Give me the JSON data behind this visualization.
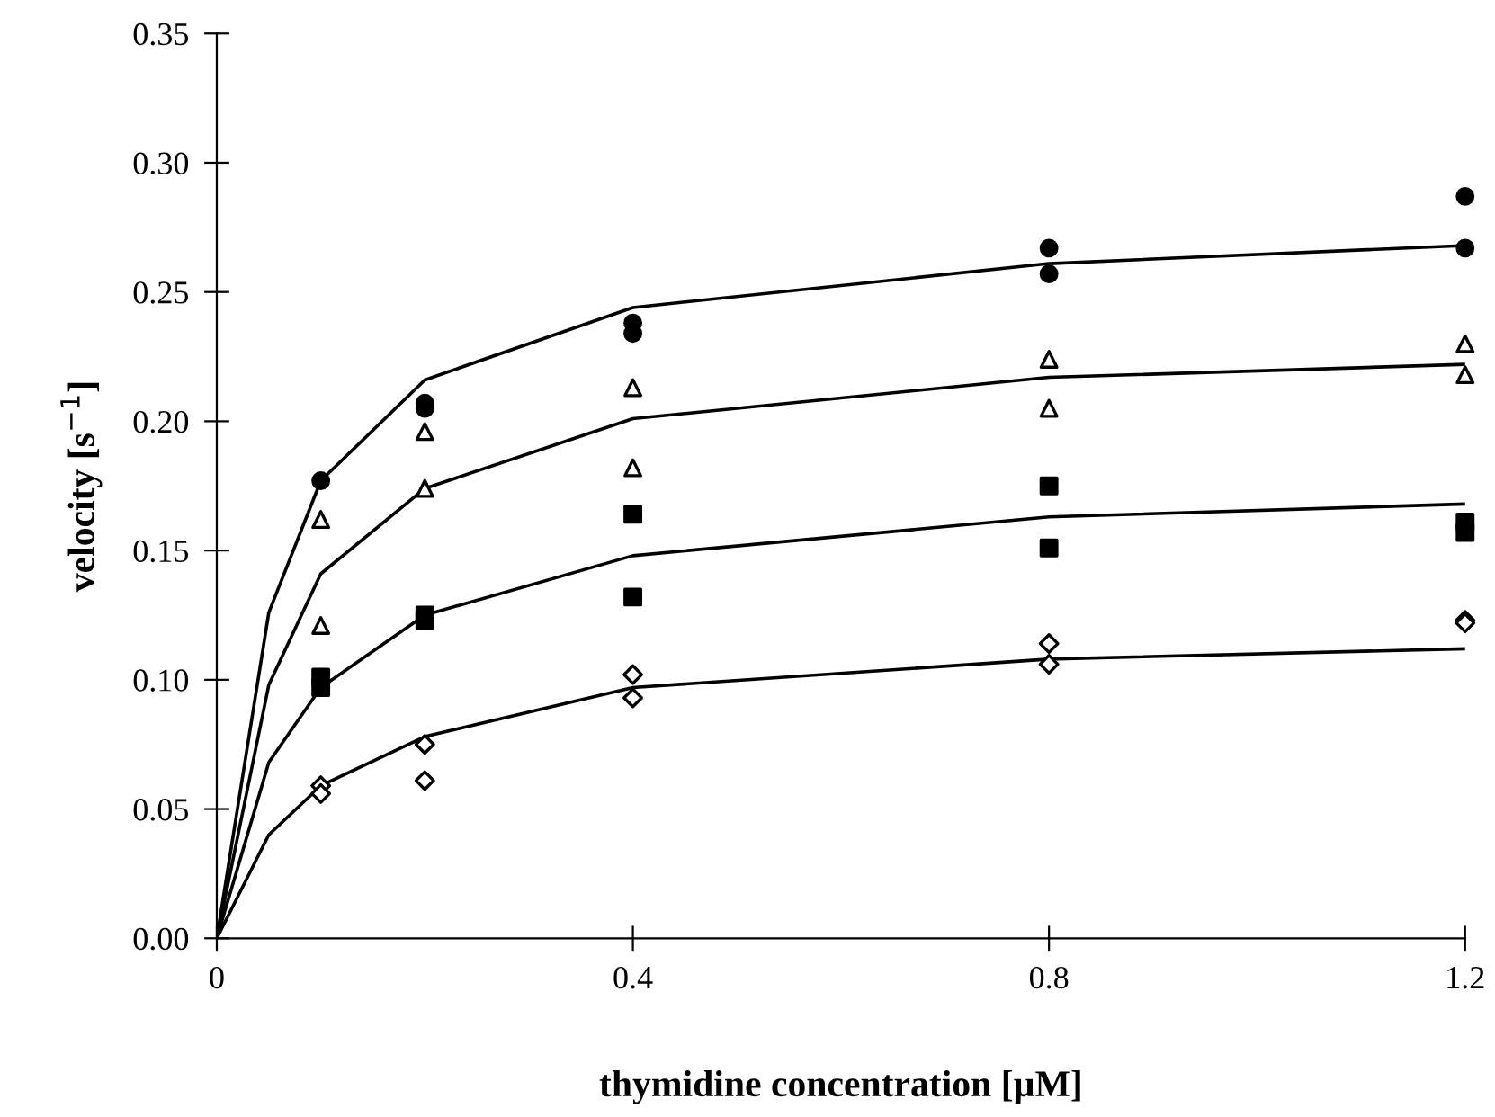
{
  "chart_data": {
    "type": "scatter",
    "xlabel": "thymidine concentration [µM]",
    "ylabel": "velocity [s$^{−1}$]",
    "xlim": [
      0,
      1.2
    ],
    "xticks": [
      0,
      0.4,
      0.8,
      1.2
    ],
    "ylim": [
      0,
      0.35
    ],
    "yticks": [
      {
        "value": 0,
        "label": "0.00"
      },
      {
        "value": 0.05,
        "label": "0.05"
      },
      {
        "value": 0.1,
        "label": "0.10"
      },
      {
        "value": 0.15,
        "label": "0.15"
      },
      {
        "value": 0.2,
        "label": "0.20"
      },
      {
        "value": 0.25,
        "label": "0.25"
      },
      {
        "value": 0.3,
        "label": "0.30"
      },
      {
        "value": 0.35,
        "label": "0.35"
      }
    ],
    "grid": false,
    "legend": false,
    "series": [
      {
        "marker": "circle",
        "color": "#000000",
        "x": [
          0.1,
          0.2,
          0.2,
          0.4,
          0.4,
          0.8,
          0.8,
          1.2,
          1.2
        ],
        "values": [
          0.177,
          0.207,
          0.205,
          0.238,
          0.234,
          0.267,
          0.257,
          0.287,
          0.267
        ]
      },
      {
        "marker": "triangle",
        "color": "#000000",
        "x": [
          0.1,
          0.1,
          0.2,
          0.2,
          0.4,
          0.4,
          0.8,
          0.8,
          1.2,
          1.2
        ],
        "values": [
          0.162,
          0.121,
          0.196,
          0.174,
          0.213,
          0.182,
          0.224,
          0.205,
          0.23,
          0.218
        ]
      },
      {
        "marker": "square",
        "color": "#000000",
        "x": [
          0.1,
          0.1,
          0.2,
          0.2,
          0.4,
          0.4,
          0.8,
          0.8,
          1.2,
          1.2
        ],
        "values": [
          0.101,
          0.097,
          0.125,
          0.123,
          0.164,
          0.132,
          0.175,
          0.151,
          0.161,
          0.157
        ]
      },
      {
        "marker": "diamond",
        "color": "#000000",
        "x": [
          0.1,
          0.1,
          0.2,
          0.2,
          0.4,
          0.4,
          0.8,
          0.8,
          1.2,
          1.2
        ],
        "values": [
          0.059,
          0.056,
          0.075,
          0.061,
          0.102,
          0.093,
          0.114,
          0.106,
          0.123,
          0.122
        ]
      },
      {
        "type": "line",
        "marker": "none",
        "color": "#000000",
        "x": [
          0,
          0.05,
          0.1,
          0.2,
          0.4,
          0.8,
          1.2
        ],
        "values": [
          0,
          0.126,
          0.177,
          0.216,
          0.244,
          0.261,
          0.268
        ]
      },
      {
        "type": "line",
        "marker": "none",
        "color": "#000000",
        "x": [
          0,
          0.05,
          0.1,
          0.2,
          0.4,
          0.8,
          1.2
        ],
        "values": [
          0,
          0.098,
          0.141,
          0.174,
          0.201,
          0.217,
          0.222
        ]
      },
      {
        "type": "line",
        "marker": "none",
        "color": "#000000",
        "x": [
          0,
          0.05,
          0.1,
          0.2,
          0.4,
          0.8,
          1.2
        ],
        "values": [
          0,
          0.068,
          0.097,
          0.125,
          0.148,
          0.163,
          0.168
        ]
      },
      {
        "type": "line",
        "marker": "none",
        "color": "#000000",
        "x": [
          0,
          0.05,
          0.1,
          0.2,
          0.4,
          0.8,
          1.2
        ],
        "values": [
          0,
          0.04,
          0.059,
          0.078,
          0.097,
          0.108,
          0.112
        ]
      }
    ]
  }
}
